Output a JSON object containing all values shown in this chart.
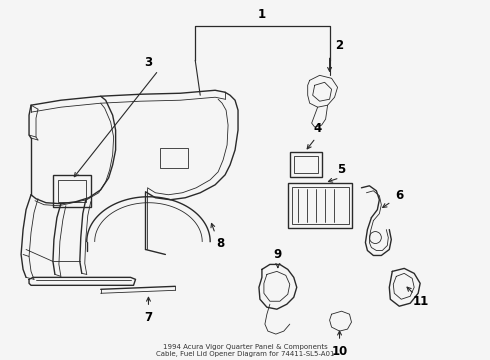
{
  "title": "1994 Acura Vigor Quarter Panel & Components\nCable, Fuel Lid Opener Diagram for 74411-SL5-A01",
  "bg_color": "#f5f5f5",
  "line_color": "#2a2a2a",
  "label_color": "#000000",
  "label_fontsize": 8.5,
  "fig_w": 4.9,
  "fig_h": 3.6,
  "dpi": 100
}
